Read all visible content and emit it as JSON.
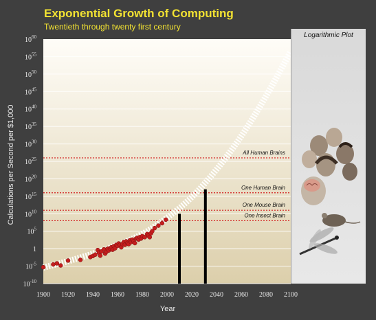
{
  "chart_data": {
    "type": "scatter",
    "title": "Exponential Growth of Computing",
    "subtitle": "Twentieth through twenty first century",
    "xlabel": "Year",
    "ylabel": "Calculations per Second per $1,000",
    "xlim": [
      1900,
      2100
    ],
    "ylim_log10": [
      -10,
      60
    ],
    "y_scale": "log",
    "x_ticks": [
      1900,
      1920,
      1940,
      1960,
      1980,
      2000,
      2020,
      2040,
      2060,
      2080,
      2100
    ],
    "y_ticks": [
      {
        "mant": "10",
        "exp": "-10",
        "v": -10
      },
      {
        "mant": "10",
        "exp": "-5",
        "v": -5
      },
      {
        "mant": "1",
        "exp": "",
        "v": 0
      },
      {
        "mant": "10",
        "exp": "5",
        "v": 5
      },
      {
        "mant": "10",
        "exp": "10",
        "v": 10
      },
      {
        "mant": "10",
        "exp": "15",
        "v": 15
      },
      {
        "mant": "10",
        "exp": "20",
        "v": 20
      },
      {
        "mant": "10",
        "exp": "25",
        "v": 25
      },
      {
        "mant": "10",
        "exp": "30",
        "v": 30
      },
      {
        "mant": "10",
        "exp": "35",
        "v": 35
      },
      {
        "mant": "10",
        "exp": "40",
        "v": 40
      },
      {
        "mant": "10",
        "exp": "45",
        "v": 45
      },
      {
        "mant": "10",
        "exp": "50",
        "v": 50
      },
      {
        "mant": "10",
        "exp": "55",
        "v": 55
      },
      {
        "mant": "10",
        "exp": "60",
        "v": 60
      }
    ],
    "points": [
      [
        1900,
        -5.3
      ],
      [
        1908,
        -4.5
      ],
      [
        1911,
        -4.2
      ],
      [
        1914,
        -4.8
      ],
      [
        1920,
        -3.4
      ],
      [
        1930,
        -3.2
      ],
      [
        1938,
        -2.4
      ],
      [
        1940,
        -2.1
      ],
      [
        1942,
        -1.7
      ],
      [
        1944,
        -0.4
      ],
      [
        1945,
        -1.1
      ],
      [
        1946,
        -2.0
      ],
      [
        1947,
        -0.8
      ],
      [
        1949,
        -0.2
      ],
      [
        1950,
        -1.4
      ],
      [
        1951,
        -0.9
      ],
      [
        1952,
        0.0
      ],
      [
        1953,
        -0.5
      ],
      [
        1954,
        0.1
      ],
      [
        1955,
        0.4
      ],
      [
        1956,
        -0.3
      ],
      [
        1957,
        0.7
      ],
      [
        1958,
        0.1
      ],
      [
        1959,
        1.1
      ],
      [
        1960,
        0.8
      ],
      [
        1961,
        1.5
      ],
      [
        1962,
        1.1
      ],
      [
        1963,
        0.4
      ],
      [
        1964,
        1.3
      ],
      [
        1965,
        1.9
      ],
      [
        1966,
        1.1
      ],
      [
        1967,
        2.1
      ],
      [
        1968,
        1.6
      ],
      [
        1969,
        1.3
      ],
      [
        1970,
        2.4
      ],
      [
        1971,
        1.9
      ],
      [
        1972,
        2.6
      ],
      [
        1973,
        2.1
      ],
      [
        1974,
        1.6
      ],
      [
        1975,
        2.9
      ],
      [
        1976,
        3.1
      ],
      [
        1977,
        2.6
      ],
      [
        1978,
        3.3
      ],
      [
        1979,
        2.9
      ],
      [
        1980,
        3.6
      ],
      [
        1982,
        3.3
      ],
      [
        1984,
        4.2
      ],
      [
        1985,
        3.7
      ],
      [
        1986,
        3.3
      ],
      [
        1987,
        4.4
      ],
      [
        1988,
        5.0
      ],
      [
        1990,
        5.9
      ],
      [
        1993,
        6.6
      ],
      [
        1996,
        7.3
      ],
      [
        1999,
        8.3
      ]
    ],
    "trend_points": [
      [
        1900,
        -5.4
      ],
      [
        1920,
        -3.6
      ],
      [
        1940,
        -1.5
      ],
      [
        1960,
        1.0
      ],
      [
        1980,
        4.0
      ],
      [
        2000,
        8.7
      ],
      [
        2020,
        14.5
      ],
      [
        2040,
        22.5
      ],
      [
        2060,
        32.0
      ],
      [
        2080,
        43.5
      ],
      [
        2100,
        56.5
      ]
    ],
    "bars": [
      {
        "year": 2010,
        "value_log10": 10
      },
      {
        "year": 2031,
        "value_log10": 17
      }
    ],
    "thresholds": [
      {
        "label": "All Human Brains",
        "value_log10": 26
      },
      {
        "label": "One Human Brain",
        "value_log10": 16
      },
      {
        "label": "One Mouse Brain",
        "value_log10": 11
      },
      {
        "label": "One Insect Brain",
        "value_log10": 8
      }
    ],
    "colors": {
      "point": "#c41e1e",
      "threshold": "#d21c1c",
      "title": "#f2e232",
      "plot_top": "#fffdf8",
      "plot_bottom": "#dccfab",
      "bar": "#000000"
    },
    "side_panel": {
      "title": "Logarithmic Plot",
      "icons": [
        "human-heads-icon",
        "human-brain-icon",
        "mouse-icon",
        "dragonfly-icon"
      ]
    }
  }
}
